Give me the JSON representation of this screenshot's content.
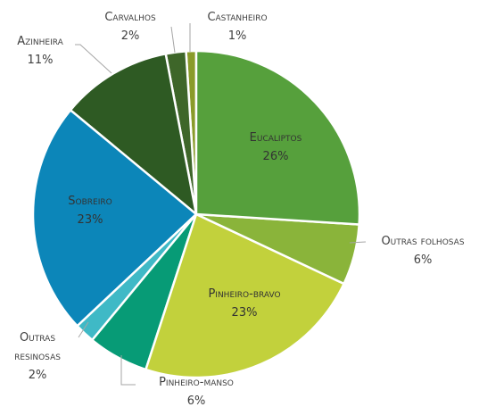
{
  "chart_data": {
    "type": "pie",
    "categories": [
      "Eucaliptos",
      "Outras folhosas",
      "Pinheiro-bravo",
      "Pinheiro-manso",
      "Outras resinosas",
      "Sobreiro",
      "Azinheira",
      "Carvalhos",
      "Castanheiro"
    ],
    "values": [
      26,
      6,
      23,
      6,
      2,
      23,
      11,
      2,
      1
    ],
    "value_labels": [
      "26%",
      "6%",
      "23%",
      "6%",
      "2%",
      "23%",
      "11%",
      "2%",
      "1%"
    ],
    "colors": [
      "#56a03c",
      "#8ab43a",
      "#c2d13c",
      "#079b76",
      "#3fb9c6",
      "#0c86b9",
      "#2e5a23",
      "#3e6629",
      "#8a9b2a"
    ]
  }
}
